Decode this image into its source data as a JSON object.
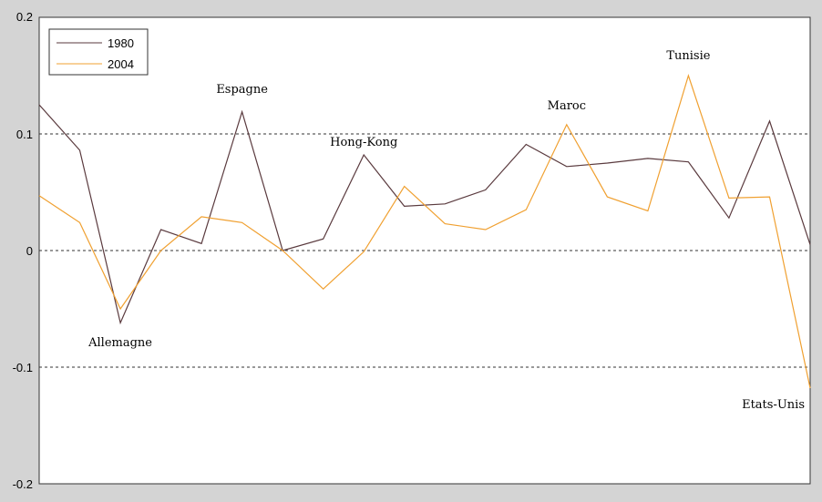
{
  "chart_data": {
    "type": "line",
    "ylim": [
      -0.2,
      0.2
    ],
    "yticks": [
      "0.2",
      "0.1",
      "0",
      "-0.1",
      "-0.2"
    ],
    "ytick_values": [
      0.2,
      0.1,
      0,
      -0.1,
      -0.2
    ],
    "reference_lines": [
      0.1,
      0,
      -0.1
    ],
    "legend_position": "top-left",
    "colors": {
      "1980": "#5a3a3e",
      "2004": "#f0a030",
      "background": "#d4d4d4",
      "plot": "#ffffff"
    },
    "series": [
      {
        "name": "1980",
        "values": [
          0.125,
          0.086,
          -0.062,
          0.018,
          0.006,
          0.119,
          0.0,
          0.01,
          0.082,
          0.038,
          0.04,
          0.052,
          0.091,
          0.072,
          0.075,
          0.079,
          0.076,
          0.028,
          0.111,
          0.005
        ]
      },
      {
        "name": "2004",
        "values": [
          0.047,
          0.024,
          -0.05,
          0.0,
          0.029,
          0.024,
          0.0,
          -0.033,
          -0.001,
          0.055,
          0.023,
          0.018,
          0.035,
          0.108,
          0.046,
          0.034,
          0.15,
          0.045,
          0.046,
          -0.118
        ]
      }
    ],
    "annotations": [
      {
        "text": "Espagne",
        "index": 5,
        "value": 0.135
      },
      {
        "text": "Allemagne",
        "index": 2,
        "value": -0.082
      },
      {
        "text": "Hong-Kong",
        "index": 8,
        "value": 0.09
      },
      {
        "text": "Maroc",
        "index": 13,
        "value": 0.121
      },
      {
        "text": "Tunisie",
        "index": 16,
        "value": 0.164
      },
      {
        "text": "Etats-Unis",
        "index": 19,
        "value": -0.135
      }
    ]
  }
}
